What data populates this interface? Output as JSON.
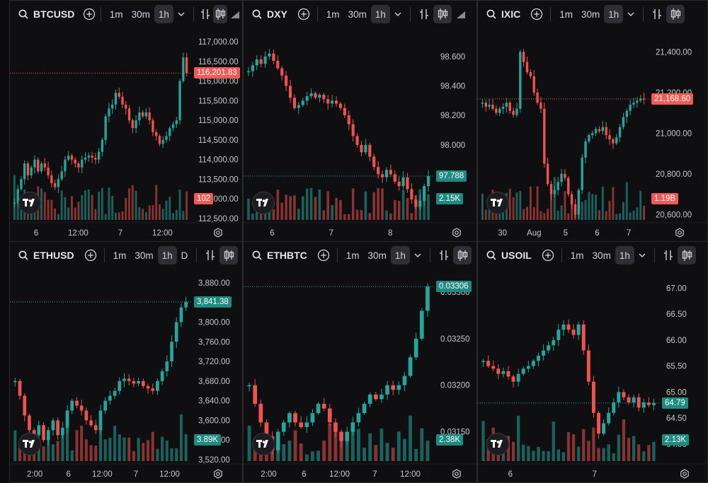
{
  "colors": {
    "up": "#26a69a",
    "down": "#ef5350",
    "upTag": "#1e8a80",
    "downTag": "#f05a55"
  },
  "toolbar": {
    "intervals": [
      "1m",
      "30m",
      "1h"
    ],
    "extra": "D"
  },
  "panes": [
    {
      "symbol": "BTCUSD",
      "last_price": "116,201.83",
      "volume_tag": "102",
      "y_ticks": [
        "117,000.00",
        "116,500.00",
        "116,000.00",
        "115,500.00",
        "115,000.00",
        "114,500.00",
        "114,000.00",
        "113,500.00",
        "113,000.00",
        "112,500.00"
      ],
      "x_ticks": [
        "6",
        "12:00",
        "7",
        "12:00"
      ],
      "chart_data": {
        "type": "candlestick",
        "ylim": [
          112500,
          117000
        ],
        "last": 116201.83,
        "closes": [
          112900,
          113250,
          113500,
          113900,
          113600,
          113800,
          114000,
          113700,
          113900,
          113800,
          113600,
          113400,
          113300,
          113500,
          113700,
          114000,
          114100,
          114000,
          113900,
          113800,
          114000,
          114050,
          114100,
          114050,
          114000,
          114200,
          114500,
          115100,
          115300,
          115400,
          115700,
          115600,
          115400,
          115300,
          115000,
          114800,
          115000,
          115200,
          115100,
          115200,
          115000,
          114700,
          114600,
          114400,
          114500,
          114600,
          114800,
          114900,
          115000,
          116000,
          116600,
          116201.83
        ]
      }
    },
    {
      "symbol": "DXY",
      "last_price": "97.788",
      "volume_tag": "2.15K",
      "y_ticks": [
        "98.600",
        "98.400",
        "98.200",
        "98.000",
        "97.800"
      ],
      "x_ticks": [
        "6",
        "7",
        "8"
      ],
      "chart_data": {
        "type": "candlestick",
        "ylim": [
          97.5,
          98.7
        ],
        "last": 97.788,
        "closes": [
          98.5,
          98.54,
          98.58,
          98.55,
          98.6,
          98.62,
          98.57,
          98.52,
          98.47,
          98.4,
          98.32,
          98.25,
          98.27,
          98.3,
          98.33,
          98.35,
          98.32,
          98.34,
          98.31,
          98.28,
          98.3,
          98.28,
          98.25,
          98.2,
          98.14,
          98.06,
          98.0,
          97.95,
          98.0,
          97.92,
          97.85,
          97.8,
          97.78,
          97.83,
          97.8,
          97.75,
          97.72,
          97.78,
          97.7,
          97.63,
          97.58,
          97.62,
          97.72,
          97.788
        ]
      }
    },
    {
      "symbol": "IXIC",
      "last_price": "21,168.60",
      "volume_tag": "1.19B",
      "y_ticks": [
        "21,400.00",
        "21,200.00",
        "21,000.00",
        "20,800.00",
        "20,600.00"
      ],
      "x_ticks": [
        "30",
        "Aug",
        "5",
        "6",
        "7"
      ],
      "chart_data": {
        "type": "candlestick",
        "ylim": [
          20580,
          21450
        ],
        "last": 21168.6,
        "closes": [
          21150,
          21130,
          21140,
          21120,
          21100,
          21120,
          21130,
          21150,
          21110,
          21090,
          21120,
          21400,
          21350,
          21300,
          21280,
          21200,
          21150,
          21120,
          20850,
          20750,
          20700,
          20720,
          20760,
          20800,
          20780,
          20700,
          20650,
          20600,
          20720,
          20880,
          20960,
          20990,
          21000,
          21020,
          21010,
          21030,
          20990,
          20970,
          20950,
          20980,
          21030,
          21080,
          21110,
          21140,
          21150,
          21160,
          21170,
          21168.6
        ]
      }
    },
    {
      "symbol": "ETHUSD",
      "last_price": "3,841.38",
      "volume_tag": "3.89K",
      "y_ticks": [
        "3,880.00",
        "3,840.00",
        "3,800.00",
        "3,760.00",
        "3,720.00",
        "3,680.00",
        "3,640.00",
        "3,600.00",
        "3,560.00",
        "3,520.00"
      ],
      "x_ticks": [
        "2:00",
        "6",
        "12:00",
        "7",
        "12:00"
      ],
      "chart_data": {
        "type": "candlestick",
        "ylim": [
          3520,
          3880
        ],
        "last": 3841.38,
        "closes": [
          3680,
          3650,
          3610,
          3580,
          3570,
          3590,
          3560,
          3580,
          3600,
          3570,
          3585,
          3620,
          3640,
          3630,
          3620,
          3600,
          3590,
          3580,
          3620,
          3640,
          3650,
          3660,
          3680,
          3685,
          3680,
          3675,
          3680,
          3670,
          3665,
          3660,
          3680,
          3700,
          3720,
          3760,
          3800,
          3830,
          3841.38
        ]
      }
    },
    {
      "symbol": "ETHBTC",
      "last_price": "0.03306",
      "volume_tag": "2.38K",
      "y_ticks": [
        "0.03300",
        "0.03250",
        "0.03200",
        "0.03150"
      ],
      "x_ticks": [
        "2:00",
        "6",
        "12:00",
        "7",
        "12:00"
      ],
      "chart_data": {
        "type": "candlestick",
        "ylim": [
          0.0312,
          0.0331
        ],
        "last": 0.03306,
        "closes": [
          0.032,
          0.0318,
          0.0316,
          0.03145,
          0.0313,
          0.0315,
          0.0316,
          0.0317,
          0.0316,
          0.03155,
          0.0316,
          0.0317,
          0.0318,
          0.03175,
          0.0316,
          0.0315,
          0.0314,
          0.0315,
          0.0316,
          0.0317,
          0.0318,
          0.0319,
          0.03185,
          0.0319,
          0.032,
          0.03195,
          0.032,
          0.0321,
          0.0323,
          0.0325,
          0.0328,
          0.03306
        ]
      }
    },
    {
      "symbol": "USOIL",
      "last_price": "64.79",
      "volume_tag": "2.13K",
      "y_ticks": [
        "67.00",
        "66.50",
        "66.00",
        "65.50",
        "65.00",
        "64.50",
        "64.00"
      ],
      "x_ticks": [
        "6",
        "7"
      ],
      "chart_data": {
        "type": "candlestick",
        "ylim": [
          63.7,
          67.1
        ],
        "last": 64.79,
        "closes": [
          65.6,
          65.5,
          65.45,
          65.35,
          65.4,
          65.3,
          65.2,
          65.35,
          65.45,
          65.5,
          65.6,
          65.7,
          65.8,
          65.9,
          66.0,
          66.2,
          66.3,
          66.2,
          66.1,
          66.3,
          65.8,
          65.2,
          64.6,
          64.2,
          64.4,
          64.6,
          64.8,
          65.0,
          64.9,
          64.8,
          64.9,
          64.7,
          64.8,
          64.75,
          64.79
        ]
      }
    }
  ]
}
